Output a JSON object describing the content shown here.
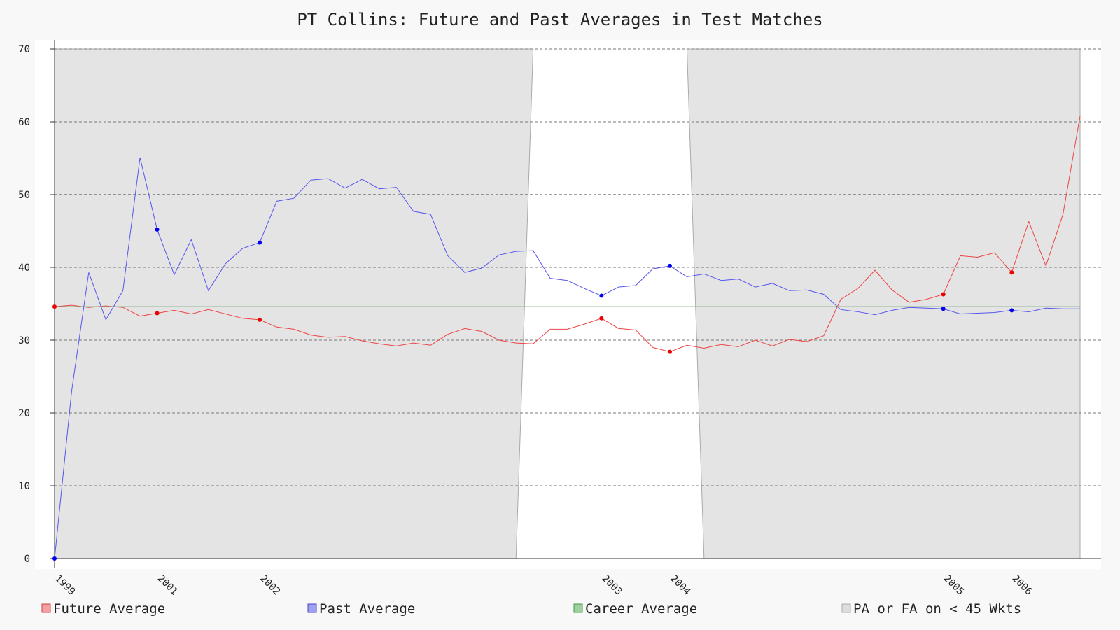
{
  "chart_data": {
    "type": "line",
    "title": "PT Collins: Future and Past Averages in Test Matches",
    "xlabel": "",
    "ylabel": "",
    "ylim": [
      0,
      70
    ],
    "yticks": [
      0,
      10,
      20,
      30,
      40,
      50,
      60,
      70
    ],
    "grid": true,
    "legend_position": "bottom",
    "x_match_count": 61,
    "year_ticks": [
      {
        "label": "1999",
        "match": 0
      },
      {
        "label": "2001",
        "match": 6
      },
      {
        "label": "2002",
        "match": 12
      },
      {
        "label": "2003",
        "match": 32
      },
      {
        "label": "2004",
        "match": 36
      },
      {
        "label": "2005",
        "match": 52
      },
      {
        "label": "2006",
        "match": 56
      }
    ],
    "series": [
      {
        "name": "Future Average",
        "color": "#ee4444",
        "marker_color": "#ee0000",
        "values": [
          34.6,
          34.8,
          34.5,
          34.7,
          34.5,
          33.3,
          33.7,
          34.1,
          33.6,
          34.2,
          33.6,
          33.0,
          32.8,
          31.8,
          31.5,
          30.7,
          30.4,
          30.5,
          29.9,
          29.5,
          29.2,
          29.6,
          29.3,
          30.8,
          31.6,
          31.2,
          30.0,
          29.6,
          29.5,
          31.5,
          31.5,
          32.2,
          33.0,
          31.6,
          31.4,
          29.0,
          28.4,
          29.3,
          28.9,
          29.4,
          29.1,
          30.0,
          29.2,
          30.1,
          29.8,
          30.6,
          35.6,
          37.1,
          39.6,
          36.9,
          35.2,
          35.6,
          36.3,
          41.6,
          41.4,
          42.0,
          39.3,
          46.3,
          40.2,
          47.3,
          60.8
        ],
        "marked_points": [
          0,
          6,
          12,
          32,
          36,
          52,
          56
        ]
      },
      {
        "name": "Past Average",
        "color": "#5555ee",
        "marker_color": "#0000ee",
        "values": [
          0,
          23.0,
          39.3,
          32.8,
          36.8,
          55.1,
          45.2,
          39.0,
          43.8,
          36.8,
          40.5,
          42.6,
          43.4,
          49.1,
          49.5,
          52.0,
          52.2,
          50.9,
          52.1,
          50.8,
          51.0,
          47.7,
          47.3,
          41.6,
          39.3,
          39.9,
          41.7,
          42.2,
          42.3,
          38.5,
          38.2,
          37.1,
          36.1,
          37.3,
          37.5,
          39.8,
          40.2,
          38.7,
          39.1,
          38.2,
          38.4,
          37.3,
          37.8,
          36.8,
          36.9,
          36.3,
          34.2,
          33.9,
          33.5,
          34.1,
          34.5,
          34.4,
          34.3,
          33.6,
          33.7,
          33.8,
          34.1,
          33.9,
          34.4,
          34.3,
          34.3
        ],
        "marked_points": [
          0,
          6,
          12,
          32,
          36,
          52,
          56
        ]
      },
      {
        "name": "Career Average",
        "color": "#77aa77",
        "constant": 34.6
      }
    ],
    "shaded_region": {
      "name": "PA or FA on < 45 Wkts",
      "fill": "#e4e4e4",
      "stroke": "#aaaaaa",
      "unshaded_top": [
        28,
        37
      ],
      "unshaded_bottom": [
        27,
        38
      ]
    },
    "legend": [
      {
        "label": "Future Average",
        "fill": "#f4a0a0",
        "stroke": "#cc4444"
      },
      {
        "label": "Past Average",
        "fill": "#a0a0f0",
        "stroke": "#4444cc"
      },
      {
        "label": "Career Average",
        "fill": "#a0d0a0",
        "stroke": "#449944"
      },
      {
        "label": "PA or FA on < 45 Wkts",
        "fill": "#dddddd",
        "stroke": "#aaaaaa"
      }
    ]
  }
}
